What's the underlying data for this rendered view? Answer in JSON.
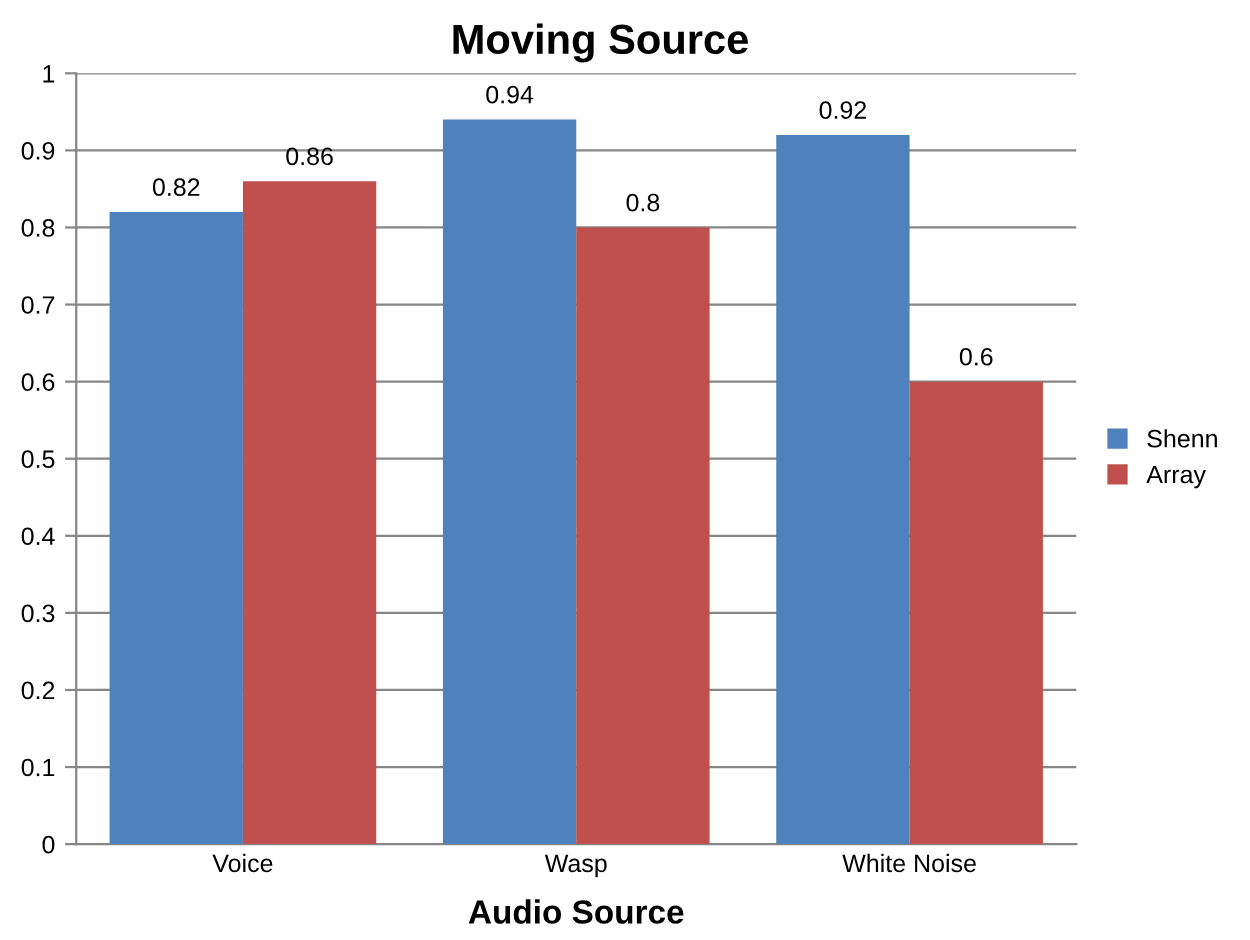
{
  "chart_data": {
    "type": "bar",
    "title": "Moving Source",
    "xlabel": "Audio Source",
    "categories": [
      "Voice",
      "Wasp",
      "White Noise"
    ],
    "series": [
      {
        "name": "Shenn",
        "color": "#4f81bd",
        "values": [
          0.82,
          0.94,
          0.92
        ]
      },
      {
        "name": "Array",
        "color": "#c0504d",
        "values": [
          0.86,
          0.8,
          0.6
        ]
      }
    ],
    "ylim": [
      0,
      1
    ],
    "yticks": [
      0,
      0.1,
      0.2,
      0.3,
      0.4,
      0.5,
      0.6,
      0.7,
      0.8,
      0.9,
      1
    ],
    "grid": "y",
    "legend": "right",
    "data_labels": true
  }
}
